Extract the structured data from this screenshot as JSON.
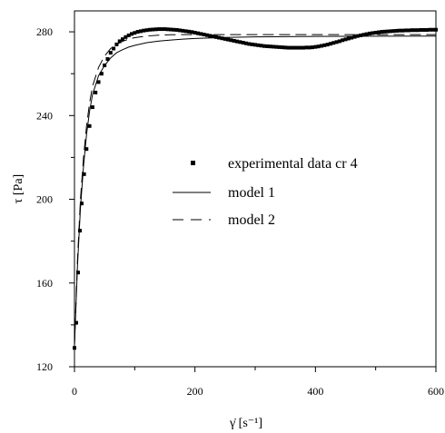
{
  "chart_data": {
    "type": "line",
    "xlabel": "γ̇ [s⁻¹]",
    "ylabel": "τ [Pa]",
    "xlim": [
      0,
      600
    ],
    "ylim": [
      120,
      290
    ],
    "x_ticks": [
      0,
      200,
      400,
      600
    ],
    "y_ticks": [
      120,
      160,
      200,
      240,
      280
    ],
    "grid": false,
    "legend_position": "center",
    "series": [
      {
        "name": "experimental data cr 4",
        "style": "markers",
        "x": [
          0,
          3,
          6,
          9,
          12,
          16,
          20,
          25,
          30,
          35,
          40,
          45,
          50,
          55,
          60,
          65,
          70,
          75,
          80,
          85,
          90,
          95,
          100,
          105,
          110,
          115,
          120,
          125,
          130,
          135,
          140,
          145,
          150,
          155,
          160,
          165,
          170,
          175,
          180,
          185,
          190,
          195,
          200,
          205,
          210,
          215,
          220,
          225,
          230,
          235,
          240,
          245,
          250,
          255,
          260,
          265,
          270,
          275,
          280,
          285,
          290,
          295,
          300,
          305,
          310,
          315,
          320,
          325,
          330,
          335,
          340,
          345,
          350,
          355,
          360,
          365,
          370,
          375,
          380,
          385,
          390,
          395,
          400,
          405,
          410,
          415,
          420,
          425,
          430,
          435,
          440,
          445,
          450,
          455,
          460,
          465,
          470,
          475,
          480,
          485,
          490,
          495,
          500,
          505,
          510,
          515,
          520,
          525,
          530,
          535,
          540,
          545,
          550,
          555,
          560,
          565,
          570,
          575,
          580,
          585,
          590,
          595,
          600
        ],
        "y": [
          129,
          141,
          165,
          185,
          198,
          212,
          224,
          235,
          244,
          251,
          256,
          260,
          264,
          267,
          270,
          272,
          274,
          275.5,
          276.5,
          277.5,
          278.3,
          279,
          279.5,
          280,
          280.3,
          280.6,
          280.8,
          281,
          281.1,
          281.2,
          281.3,
          281.3,
          281.3,
          281.2,
          281.1,
          281,
          280.9,
          280.7,
          280.5,
          280.3,
          280.1,
          279.9,
          279.6,
          279.3,
          279,
          278.7,
          278.4,
          278.1,
          277.8,
          277.5,
          277.2,
          276.9,
          276.6,
          276.3,
          276,
          275.7,
          275.4,
          275.1,
          274.8,
          274.5,
          274.2,
          274,
          273.8,
          273.6,
          273.4,
          273.2,
          273.1,
          273,
          272.9,
          272.8,
          272.7,
          272.6,
          272.5,
          272.4,
          272.4,
          272.4,
          272.4,
          272.4,
          272.4,
          272.5,
          272.5,
          272.6,
          272.8,
          273,
          273.3,
          273.6,
          273.9,
          274.3,
          274.7,
          275.1,
          275.5,
          276,
          276.4,
          276.8,
          277.2,
          277.6,
          278,
          278.3,
          278.6,
          278.9,
          279.2,
          279.4,
          279.6,
          279.8,
          280,
          280.1,
          280.2,
          280.3,
          280.4,
          280.5,
          280.6,
          280.6,
          280.7,
          280.7,
          280.8,
          280.8,
          280.8,
          280.9,
          280.9,
          280.9,
          281,
          281,
          281
        ]
      },
      {
        "name": "model 1",
        "style": "solid",
        "x": [
          0,
          5,
          10,
          15,
          20,
          25,
          30,
          40,
          50,
          60,
          70,
          80,
          90,
          100,
          120,
          140,
          160,
          180,
          200,
          250,
          300,
          400,
          500,
          600
        ],
        "y": [
          130,
          168,
          196,
          216,
          231,
          242,
          250,
          259,
          264,
          267.5,
          270,
          271.5,
          272.7,
          273.5,
          274.8,
          275.6,
          276.1,
          276.5,
          276.8,
          277.3,
          277.6,
          277.8,
          277.9,
          278
        ]
      },
      {
        "name": "model 2",
        "style": "dashed",
        "x": [
          0,
          5,
          10,
          15,
          20,
          25,
          30,
          40,
          50,
          60,
          70,
          80,
          90,
          100,
          120,
          140,
          160,
          180,
          200,
          250,
          300,
          400,
          500,
          600
        ],
        "y": [
          130,
          171,
          200,
          220,
          235,
          246,
          254,
          263,
          268.5,
          272,
          274,
          275.5,
          276.5,
          277.2,
          278,
          278.4,
          278.6,
          278.7,
          278.7,
          278.7,
          278.7,
          278.7,
          278.7,
          278.7
        ]
      }
    ]
  }
}
